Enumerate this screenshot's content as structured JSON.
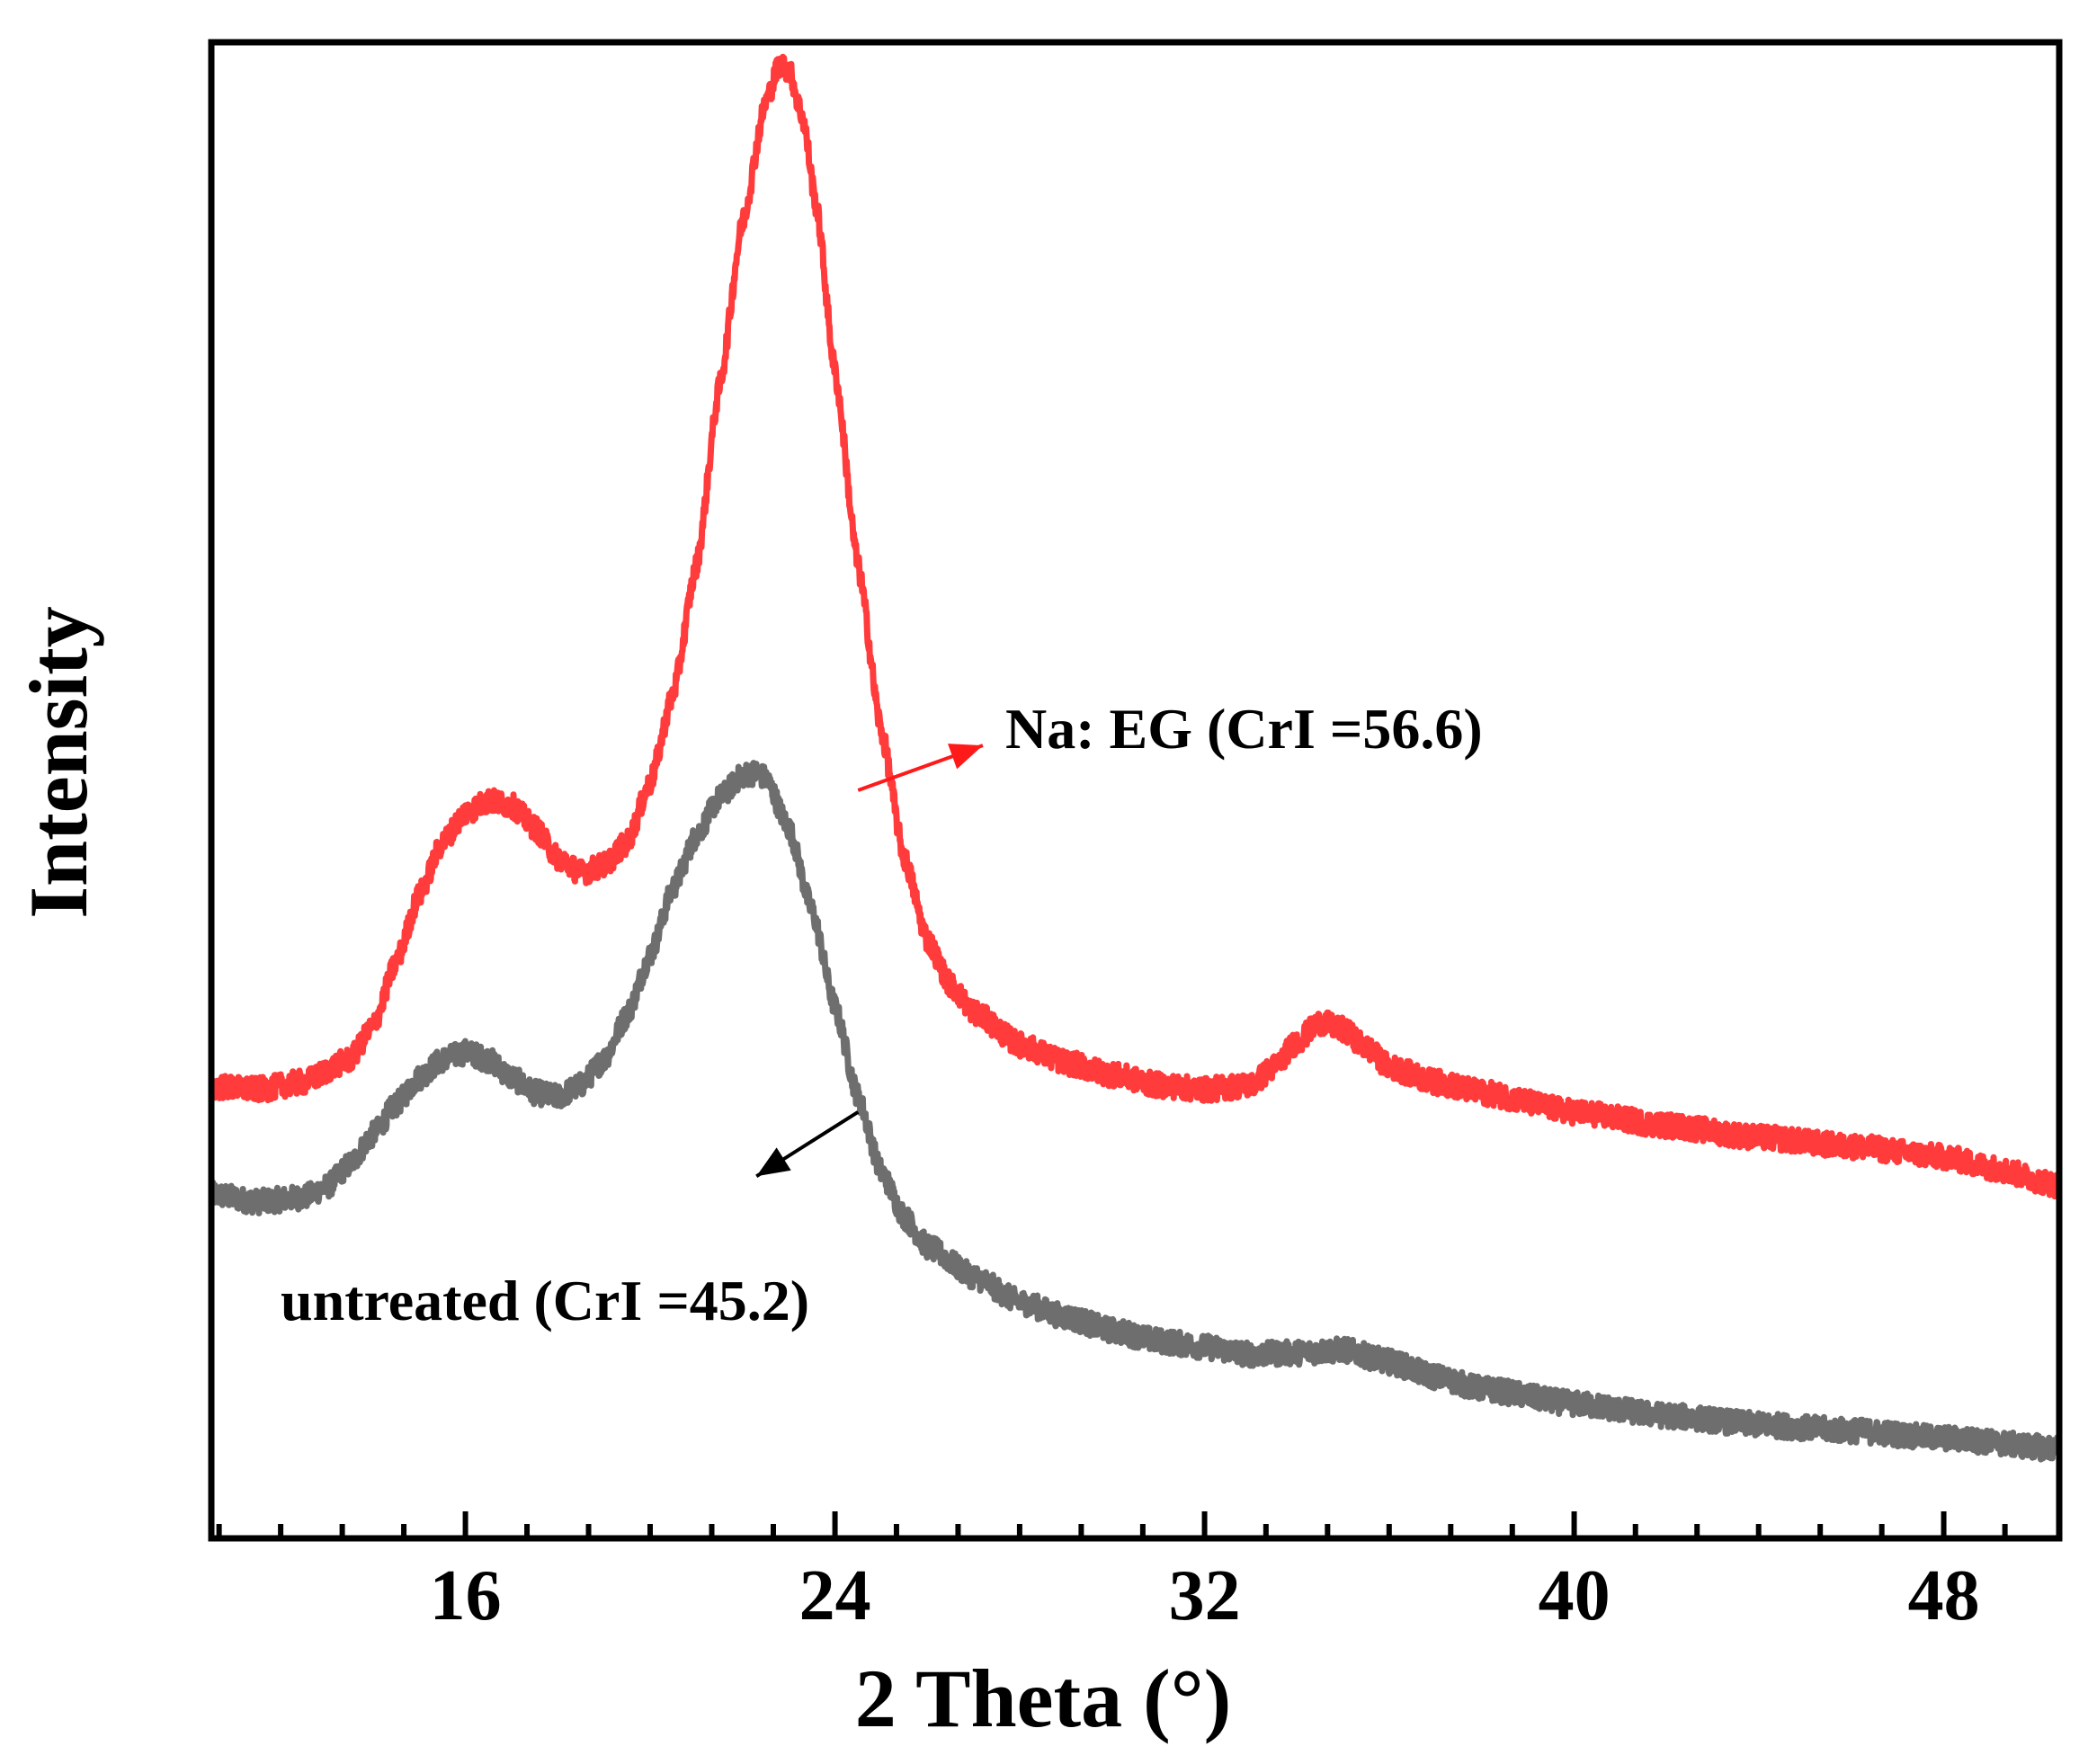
{
  "chart_data": {
    "type": "line",
    "title": "",
    "xlabel": "2 Theta (°)",
    "ylabel": "Intensity",
    "xlim": [
      10.5,
      50.5
    ],
    "ylim": [
      0,
      100
    ],
    "xticks": [
      16,
      24,
      32,
      40,
      48
    ],
    "xtick_labels": [
      "16",
      "24",
      "32",
      "40",
      "48"
    ],
    "minor_tick_step": 1.333,
    "y_ticks_shown": false,
    "legend": "none",
    "series": [
      {
        "name": "Na: EG",
        "color": "#ff3b3b",
        "noise_amplitude": 0.8,
        "x": [
          10.5,
          11.5,
          12.5,
          13.5,
          14.0,
          14.5,
          15.0,
          15.5,
          16.0,
          16.5,
          17.0,
          17.5,
          18.0,
          18.5,
          19.0,
          19.5,
          20.0,
          20.5,
          21.0,
          21.5,
          22.0,
          22.5,
          22.8,
          23.0,
          23.3,
          23.6,
          24.0,
          24.5,
          25.0,
          25.5,
          26.0,
          26.5,
          27.0,
          28.0,
          29.0,
          30.0,
          31.0,
          32.0,
          33.0,
          33.5,
          34.0,
          34.5,
          35.0,
          35.5,
          36.0,
          37.0,
          38.0,
          40.0,
          42.0,
          44.0,
          46.0,
          48.0,
          49.0,
          50.5
        ],
        "values": [
          30.2,
          30.0,
          30.5,
          32.0,
          34.2,
          38.5,
          43.0,
          46.5,
          48.5,
          49.3,
          49.0,
          47.5,
          45.5,
          44.5,
          45.0,
          46.5,
          50.5,
          56.5,
          65.0,
          77.0,
          88.0,
          96.0,
          98.5,
          98.2,
          95.0,
          89.0,
          78.0,
          65.0,
          54.0,
          45.5,
          40.0,
          37.0,
          35.2,
          33.0,
          31.8,
          31.0,
          30.3,
          30.0,
          30.3,
          31.5,
          33.2,
          34.5,
          34.0,
          32.8,
          31.5,
          30.5,
          29.8,
          28.5,
          27.6,
          26.8,
          26.2,
          25.5,
          24.8,
          23.6
        ]
      },
      {
        "name": "untreated",
        "color": "#6e6e6e",
        "noise_amplitude": 0.8,
        "x": [
          10.5,
          11.5,
          12.5,
          13.0,
          13.5,
          14.0,
          14.5,
          15.0,
          15.5,
          16.0,
          16.5,
          17.0,
          17.5,
          18.0,
          18.5,
          19.0,
          19.5,
          20.0,
          20.5,
          21.0,
          21.5,
          22.0,
          22.3,
          22.5,
          23.0,
          23.5,
          24.0,
          24.5,
          25.0,
          25.5,
          26.0,
          27.0,
          28.0,
          29.0,
          30.0,
          31.0,
          32.0,
          33.0,
          34.0,
          35.0,
          36.0,
          37.0,
          38.0,
          40.0,
          42.0,
          44.0,
          46.0,
          48.0,
          50.5
        ],
        "values": [
          23.0,
          22.5,
          22.8,
          23.5,
          25.0,
          27.0,
          29.0,
          30.8,
          32.0,
          32.5,
          32.0,
          30.8,
          29.8,
          29.5,
          30.3,
          32.0,
          35.0,
          39.0,
          43.5,
          47.0,
          49.5,
          51.0,
          51.2,
          50.8,
          47.5,
          42.0,
          35.5,
          29.5,
          24.5,
          21.5,
          19.5,
          17.5,
          15.8,
          14.8,
          13.9,
          13.2,
          12.8,
          12.3,
          12.4,
          12.6,
          11.8,
          10.8,
          10.0,
          9.0,
          8.2,
          7.6,
          7.2,
          6.7,
          6.0
        ]
      }
    ],
    "annotations": [
      {
        "text": "Na: EG (CrI =56.6)",
        "series": "Na: EG",
        "arrow_from": [
          24.5,
          50.0
        ],
        "arrow_to": [
          27.2,
          53.0
        ],
        "color": "#ff1a1a"
      },
      {
        "text": "untreated (CrI =45.2)",
        "series": "untreated",
        "arrow_from": [
          24.5,
          28.5
        ],
        "arrow_to": [
          22.3,
          24.2
        ],
        "color": "#000000"
      }
    ]
  }
}
